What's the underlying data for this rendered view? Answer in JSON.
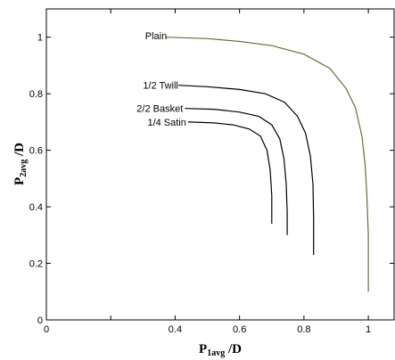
{
  "chart_data": {
    "type": "line",
    "xlabel": {
      "main": "P",
      "sub": "1avg",
      "suffix": " /D"
    },
    "ylabel": {
      "main": "P",
      "sub": "2avg",
      "suffix": " /D"
    },
    "xlim": [
      0,
      1.08
    ],
    "ylim": [
      0,
      1.1
    ],
    "x_ticks": [
      0,
      0.2,
      0.4,
      0.6,
      0.8,
      1
    ],
    "x_tick_labels": [
      "0",
      "",
      "0.4",
      "0.6",
      "0.8",
      "1"
    ],
    "y_ticks": [
      0,
      0.2,
      0.4,
      0.6,
      0.8,
      1
    ],
    "y_tick_labels": [
      "0",
      "0.2",
      "0.4",
      "0.6",
      "0.8",
      "1"
    ],
    "grid": false,
    "legend": "none",
    "series": [
      {
        "name": "Plain",
        "color": "#6b6b3a",
        "label_at": [
          0.38,
          1.005
        ],
        "points": [
          [
            0.37,
            1.0
          ],
          [
            0.5,
            0.995
          ],
          [
            0.6,
            0.985
          ],
          [
            0.7,
            0.97
          ],
          [
            0.8,
            0.94
          ],
          [
            0.88,
            0.89
          ],
          [
            0.93,
            0.82
          ],
          [
            0.96,
            0.75
          ],
          [
            0.98,
            0.65
          ],
          [
            0.99,
            0.55
          ],
          [
            0.995,
            0.45
          ],
          [
            1.0,
            0.3
          ],
          [
            1.0,
            0.1
          ]
        ]
      },
      {
        "name": "1/2 Twill",
        "color": "#000000",
        "label_at": [
          0.415,
          0.83
        ],
        "points": [
          [
            0.41,
            0.83
          ],
          [
            0.5,
            0.825
          ],
          [
            0.6,
            0.815
          ],
          [
            0.68,
            0.8
          ],
          [
            0.74,
            0.77
          ],
          [
            0.78,
            0.72
          ],
          [
            0.805,
            0.66
          ],
          [
            0.82,
            0.58
          ],
          [
            0.828,
            0.48
          ],
          [
            0.83,
            0.36
          ],
          [
            0.83,
            0.23
          ]
        ]
      },
      {
        "name": "2/2 Basket",
        "color": "#000000",
        "label_at": [
          0.43,
          0.748
        ],
        "points": [
          [
            0.43,
            0.748
          ],
          [
            0.52,
            0.745
          ],
          [
            0.6,
            0.735
          ],
          [
            0.66,
            0.72
          ],
          [
            0.7,
            0.69
          ],
          [
            0.725,
            0.64
          ],
          [
            0.738,
            0.57
          ],
          [
            0.745,
            0.48
          ],
          [
            0.748,
            0.38
          ],
          [
            0.748,
            0.3
          ]
        ]
      },
      {
        "name": "1/4 Satin",
        "color": "#000000",
        "label_at": [
          0.44,
          0.7
        ],
        "points": [
          [
            0.44,
            0.7
          ],
          [
            0.52,
            0.697
          ],
          [
            0.58,
            0.69
          ],
          [
            0.63,
            0.675
          ],
          [
            0.665,
            0.65
          ],
          [
            0.685,
            0.6
          ],
          [
            0.695,
            0.53
          ],
          [
            0.7,
            0.44
          ],
          [
            0.7,
            0.34
          ]
        ]
      }
    ]
  }
}
